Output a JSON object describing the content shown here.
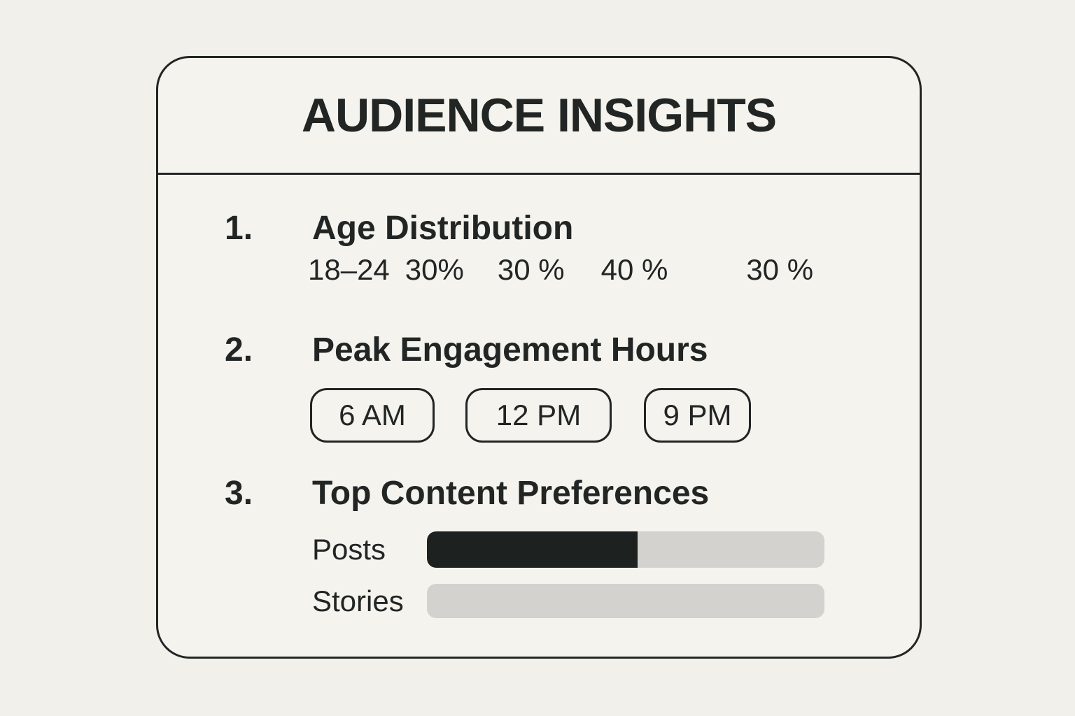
{
  "colors": {
    "page_bg": "#f2f0ea",
    "card_bg": "#f5f3ee",
    "ink": "#212524",
    "bar_track": "#d3d2ce",
    "bar_fill": "#1d2221"
  },
  "card": {
    "title": "AUDIENCE INSIGHTS",
    "sections": {
      "age": {
        "number": "1.",
        "heading": "Age Distribution",
        "values": [
          "18–24",
          "30%",
          "30 %",
          "40 %",
          "30 %"
        ]
      },
      "hours": {
        "number": "2.",
        "heading": "Peak Engagement Hours",
        "slots": [
          "6 AM",
          "12 PM",
          "9 PM"
        ]
      },
      "content": {
        "number": "3.",
        "heading": "Top Content Preferences",
        "bars": [
          {
            "label": "Posts",
            "fill_percent": 53
          },
          {
            "label": "Stories",
            "fill_percent": 0
          }
        ]
      }
    }
  }
}
